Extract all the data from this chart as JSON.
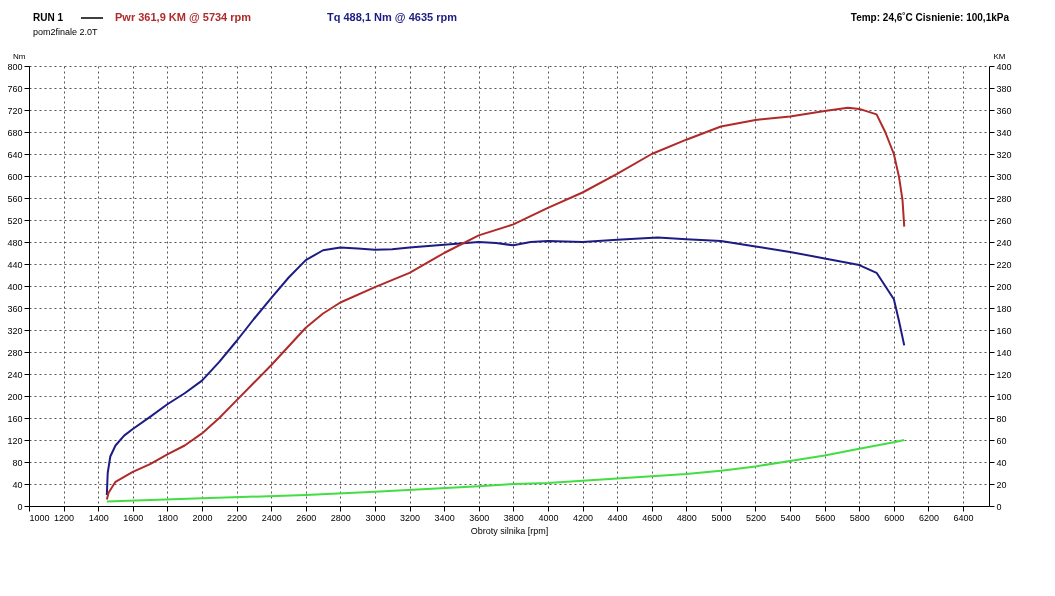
{
  "chart_data": {
    "type": "line",
    "legend_title": "RUN 1",
    "legend": "top left",
    "annotations": [
      "pom2finale 2.0T",
      "Temp: 24,6˚C   Cisnienie: 100,1kPa"
    ],
    "xlabel": "Obroty silnika [rpm]",
    "ylabel": "Nm",
    "y2label": "KM",
    "xlim": [
      1000,
      6550
    ],
    "xticks": [
      1000,
      1200,
      1400,
      1600,
      1800,
      2000,
      2200,
      2400,
      2600,
      2800,
      3000,
      3200,
      3400,
      3600,
      3800,
      4000,
      4200,
      4400,
      4600,
      4800,
      5000,
      5200,
      5400,
      5600,
      5800,
      6000,
      6200,
      6400
    ],
    "ylim": [
      0,
      800
    ],
    "yticks": [
      0,
      40,
      80,
      120,
      160,
      200,
      240,
      280,
      320,
      360,
      400,
      440,
      480,
      520,
      560,
      600,
      640,
      680,
      720,
      760,
      800
    ],
    "y2lim": [
      0,
      400
    ],
    "y2ticks": [
      0,
      20,
      40,
      60,
      80,
      100,
      120,
      140,
      160,
      180,
      200,
      220,
      240,
      260,
      280,
      300,
      320,
      340,
      360,
      380,
      400
    ],
    "grid": true,
    "line_style": "solid",
    "marker": "none",
    "series": [
      {
        "name": "Pwr  361,9 KM @ 5734 rpm",
        "color": "#b02a2a",
        "axis": "y2",
        "x": [
          1450,
          1460,
          1500,
          1600,
          1700,
          1800,
          1900,
          2000,
          2100,
          2200,
          2300,
          2400,
          2500,
          2600,
          2700,
          2800,
          3000,
          3200,
          3400,
          3600,
          3800,
          4000,
          4200,
          4400,
          4600,
          4800,
          5000,
          5200,
          5400,
          5600,
          5734,
          5800,
          5900,
          5950,
          6000,
          6030,
          6050,
          6060
        ],
        "values": [
          6,
          12,
          22,
          31,
          38,
          47,
          55,
          66,
          80,
          96,
          112,
          128,
          145,
          162,
          175,
          185,
          199,
          212,
          230,
          246,
          256,
          271,
          285,
          302,
          320,
          333,
          345,
          351,
          354,
          359,
          362,
          361,
          356,
          340,
          320,
          299,
          278,
          254
        ]
      },
      {
        "name": "Tq 488,1 Nm @ 4635 rpm",
        "color": "#1c1c84",
        "x": [
          1450,
          1455,
          1470,
          1500,
          1550,
          1600,
          1700,
          1800,
          1900,
          2000,
          2100,
          2200,
          2300,
          2400,
          2500,
          2600,
          2700,
          2800,
          2900,
          3000,
          3100,
          3200,
          3400,
          3600,
          3700,
          3800,
          3900,
          4000,
          4200,
          4400,
          4635,
          4800,
          5000,
          5200,
          5400,
          5600,
          5800,
          5900,
          6000,
          6030,
          6060
        ],
        "values": [
          20,
          60,
          90,
          110,
          128,
          140,
          162,
          185,
          205,
          228,
          262,
          300,
          340,
          378,
          415,
          447,
          465,
          470,
          468,
          466,
          467,
          470,
          475,
          480,
          478,
          474,
          480,
          482,
          480,
          484,
          488,
          485,
          482,
          472,
          462,
          450,
          438,
          424,
          376,
          336,
          292
        ]
      },
      {
        "color": "#44dd44",
        "axis": "y2",
        "x": [
          1450,
          2000,
          2600,
          3000,
          3600,
          3800,
          4000,
          4400,
          4800,
          5000,
          5200,
          5400,
          5600,
          5800,
          6000,
          6060
        ],
        "values": [
          4,
          7,
          10,
          13,
          18,
          20,
          21,
          25,
          29,
          32,
          36,
          41,
          46,
          52,
          58,
          60
        ]
      }
    ]
  }
}
